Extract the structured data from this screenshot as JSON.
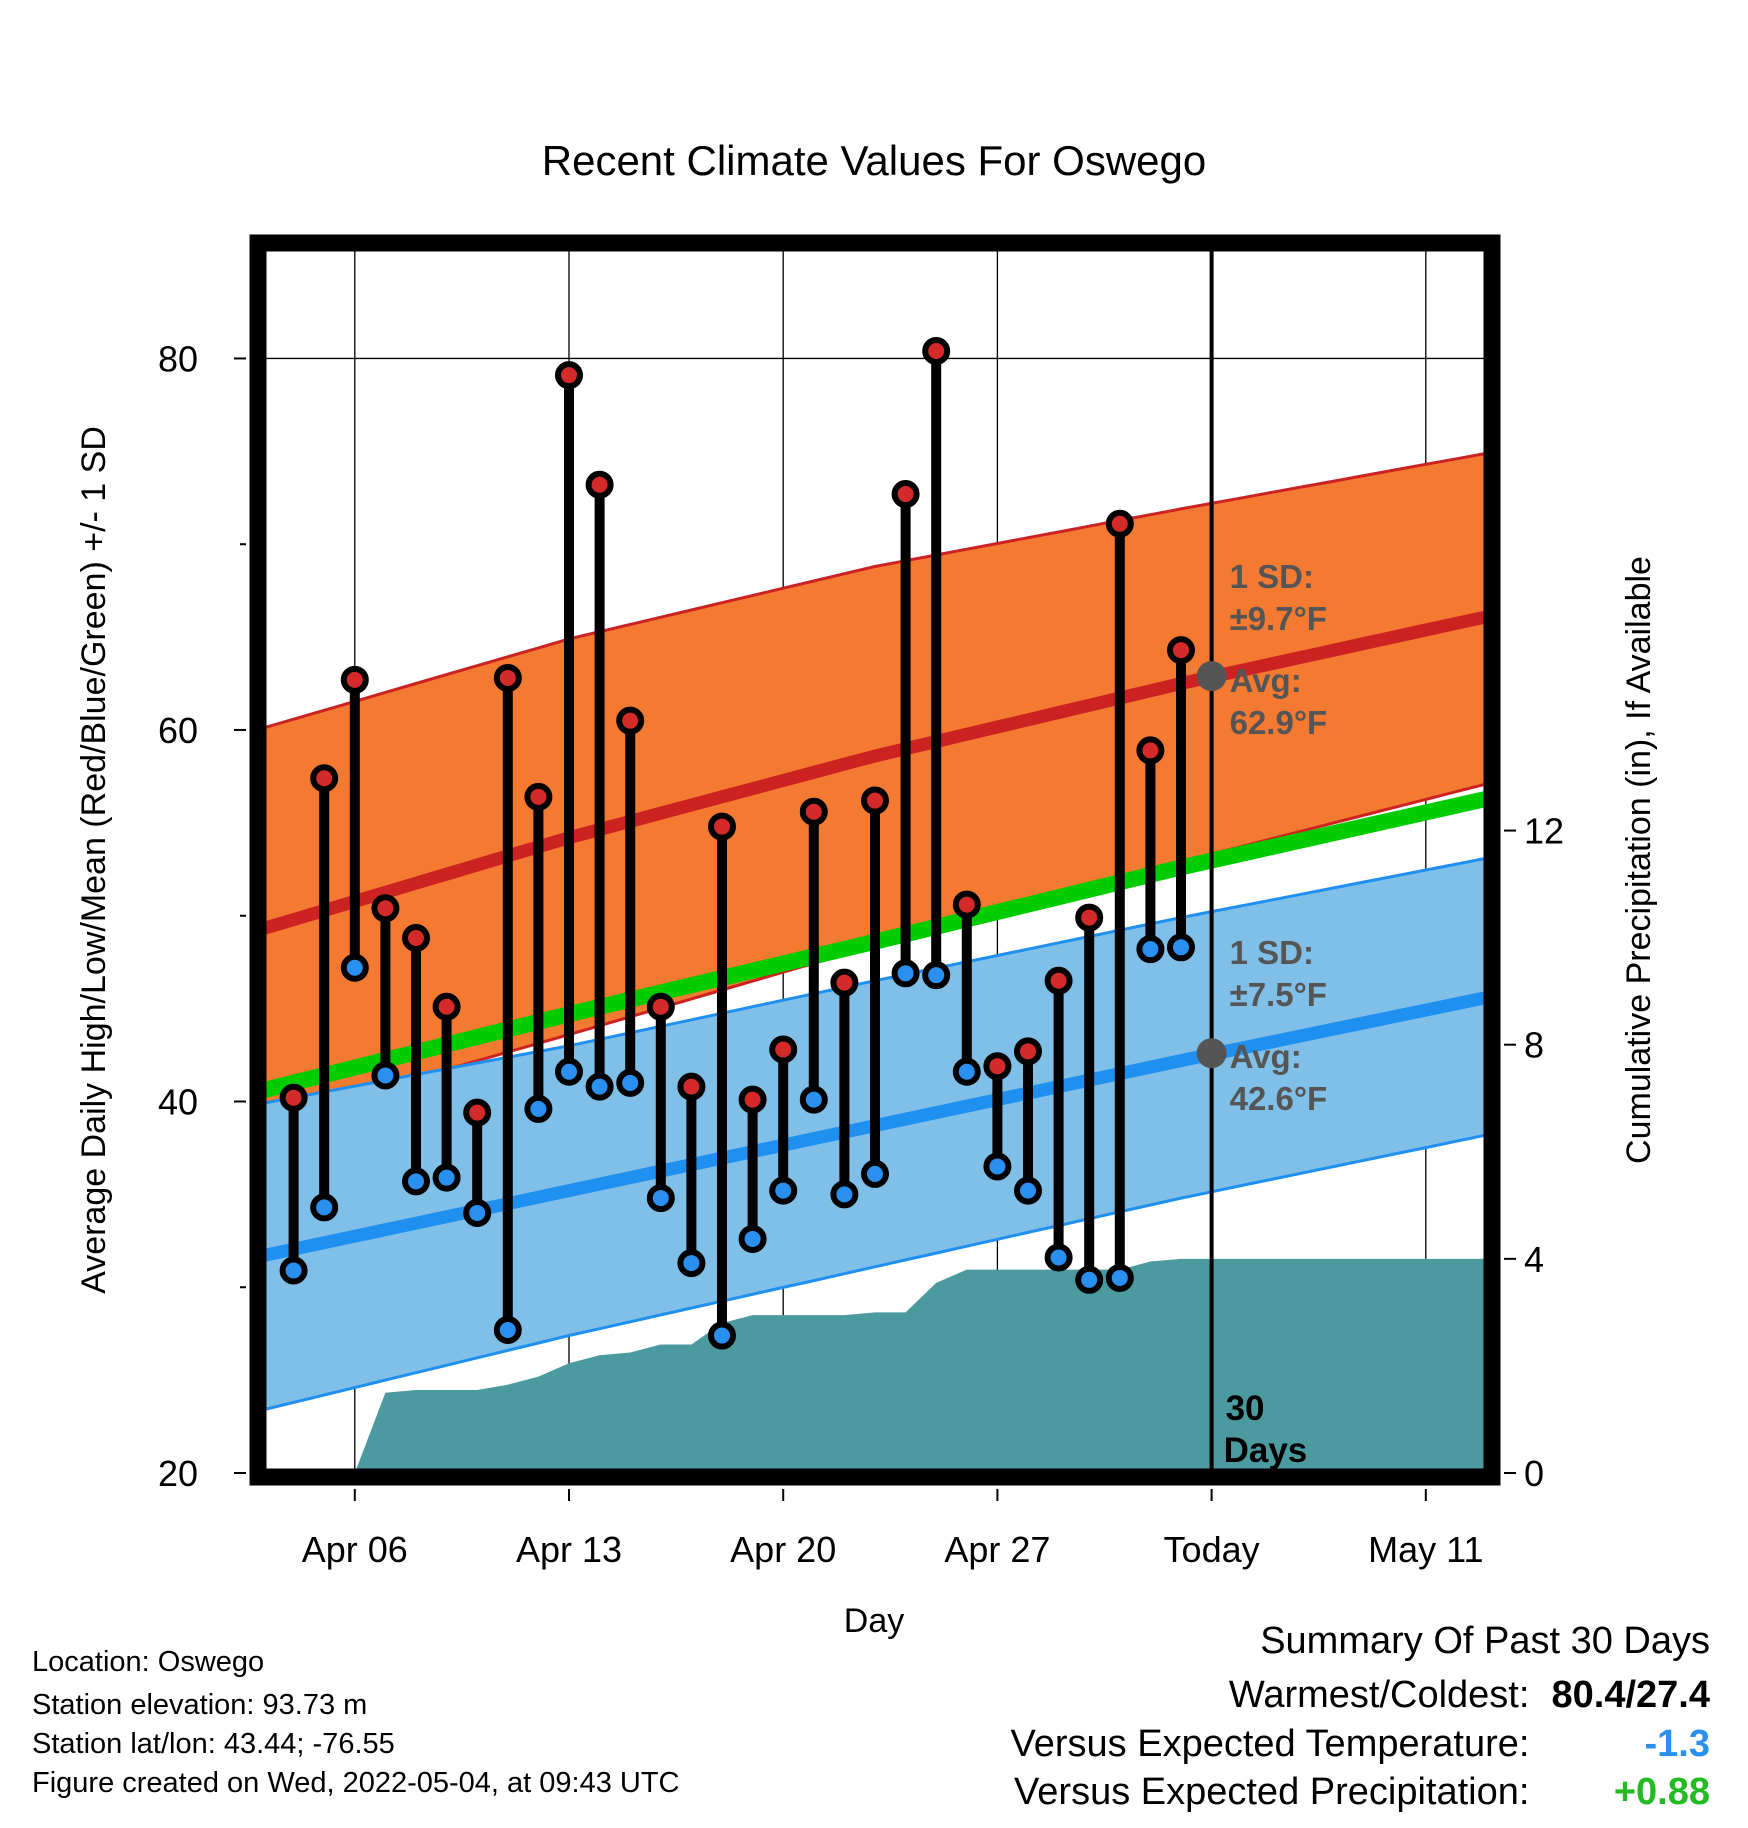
{
  "chart_data": {
    "type": "line",
    "title": "Recent Climate Values For Oswego",
    "xlabel": "Day",
    "ylabel": "Average Daily High/Low/Mean (Red/Blue/Green) +/- 1 SD",
    "y2label": "Cumulative Precipitation (in), If Available",
    "ylim": [
      20,
      86
    ],
    "y2lim": [
      0,
      22.9
    ],
    "yticks": [
      20,
      40,
      60,
      80
    ],
    "y2ticks": [
      0,
      4,
      8,
      12
    ],
    "x_range": [
      "Apr 03",
      "May 13"
    ],
    "xticks": [
      "Apr 06",
      "Apr 13",
      "Apr 20",
      "Apr 27",
      "Today",
      "May 11"
    ],
    "today_label": "Today",
    "window_label": [
      "30",
      "Days"
    ],
    "grid": true,
    "normal_high": {
      "x": [
        "Apr 03",
        "Apr 13",
        "Apr 23",
        "May 03",
        "May 13"
      ],
      "mean": [
        49.3,
        54.2,
        58.6,
        62.5,
        66.1
      ],
      "upper": [
        60.1,
        64.9,
        68.8,
        71.9,
        74.9
      ],
      "lower": [
        38.9,
        43.6,
        48.4,
        52.9,
        57.1
      ]
    },
    "normal_low": {
      "x": [
        "Apr 03",
        "Apr 13",
        "Apr 23",
        "May 03",
        "May 13"
      ],
      "mean": [
        31.7,
        35.2,
        38.7,
        42.2,
        45.6
      ],
      "upper": [
        39.9,
        43.0,
        46.5,
        49.9,
        53.1
      ],
      "lower": [
        23.4,
        27.4,
        31.1,
        34.8,
        38.2
      ]
    },
    "normal_mean": {
      "x": [
        "Apr 03",
        "Apr 13",
        "Apr 23",
        "May 03",
        "May 13"
      ],
      "values": [
        40.6,
        44.7,
        48.6,
        52.6,
        56.3
      ]
    },
    "observed": {
      "dates": [
        "Apr 04",
        "Apr 05",
        "Apr 06",
        "Apr 07",
        "Apr 08",
        "Apr 09",
        "Apr 10",
        "Apr 11",
        "Apr 12",
        "Apr 13",
        "Apr 14",
        "Apr 15",
        "Apr 16",
        "Apr 17",
        "Apr 18",
        "Apr 19",
        "Apr 20",
        "Apr 21",
        "Apr 22",
        "Apr 23",
        "Apr 24",
        "Apr 25",
        "Apr 26",
        "Apr 27",
        "Apr 28",
        "Apr 29",
        "Apr 30",
        "May 01",
        "May 02",
        "May 03"
      ],
      "highs": [
        40.2,
        57.4,
        62.7,
        50.4,
        48.8,
        45.1,
        39.4,
        62.8,
        56.4,
        79.1,
        73.2,
        60.5,
        45.1,
        40.8,
        54.8,
        40.1,
        42.8,
        55.6,
        46.4,
        56.2,
        72.7,
        80.4,
        50.6,
        41.9,
        42.7,
        46.5,
        49.9,
        71.1,
        58.9,
        64.3
      ],
      "lows": [
        30.9,
        34.3,
        47.2,
        41.4,
        35.7,
        35.9,
        34.0,
        27.7,
        39.6,
        41.6,
        40.8,
        41.0,
        34.8,
        31.3,
        27.4,
        32.6,
        35.2,
        40.1,
        35.0,
        36.1,
        46.9,
        46.8,
        41.6,
        36.5,
        35.2,
        31.6,
        30.4,
        30.5,
        48.2,
        48.3
      ]
    },
    "precip_cumulative": {
      "dates": [
        "Apr 06",
        "Apr 07",
        "Apr 08",
        "Apr 09",
        "Apr 10",
        "Apr 11",
        "Apr 12",
        "Apr 13",
        "Apr 14",
        "Apr 15",
        "Apr 16",
        "Apr 17",
        "Apr 18",
        "Apr 19",
        "Apr 20",
        "Apr 21",
        "Apr 22",
        "Apr 23",
        "Apr 24",
        "Apr 25",
        "Apr 26",
        "Apr 27",
        "Apr 28",
        "Apr 29",
        "Apr 30",
        "May 01",
        "May 02",
        "May 03",
        "May 13"
      ],
      "values": [
        0.0,
        1.5,
        1.55,
        1.55,
        1.55,
        1.65,
        1.8,
        2.05,
        2.2,
        2.25,
        2.4,
        2.4,
        2.8,
        2.95,
        2.95,
        2.95,
        2.95,
        3.0,
        3.0,
        3.55,
        3.8,
        3.8,
        3.8,
        3.8,
        3.8,
        3.8,
        3.95,
        4.0,
        4.0
      ]
    },
    "annotations": {
      "high": {
        "sd_label": "1 SD:",
        "sd_value": "±9.7°F",
        "avg_label": "Avg:",
        "avg_value": "62.9°F",
        "today_mean": 62.9
      },
      "low": {
        "sd_label": "1 SD:",
        "sd_value": "±7.5°F",
        "avg_label": "Avg:",
        "avg_value": "42.6°F",
        "today_mean": 42.6
      }
    },
    "colors": {
      "high_band": "#f47a32",
      "high_line": "#cc2222",
      "low_band": "#80c0e8",
      "low_line": "#2090f0",
      "mean_line": "#00cc00",
      "precip": "#4a9aa0",
      "high_dot": "#d42a2a",
      "low_dot": "#2a90f0",
      "annotation": "#555555"
    }
  },
  "footer": {
    "location": "Location: Oswego",
    "elevation": "Station elevation: 93.73 m",
    "latlon": "Station lat/lon: 43.44; -76.55",
    "created": "Figure created on Wed, 2022-05-04, at 09:43 UTC"
  },
  "summary": {
    "title": "Summary Of Past 30 Days",
    "warmest_label": "Warmest/Coldest:",
    "warmest_value": "80.4/27.4",
    "temp_label": "Versus Expected Temperature:",
    "temp_value": "-1.3",
    "precip_label": "Versus Expected Precipitation:",
    "precip_value": "+0.88",
    "temp_color": "#2a90f0",
    "precip_color": "#22bb22"
  }
}
